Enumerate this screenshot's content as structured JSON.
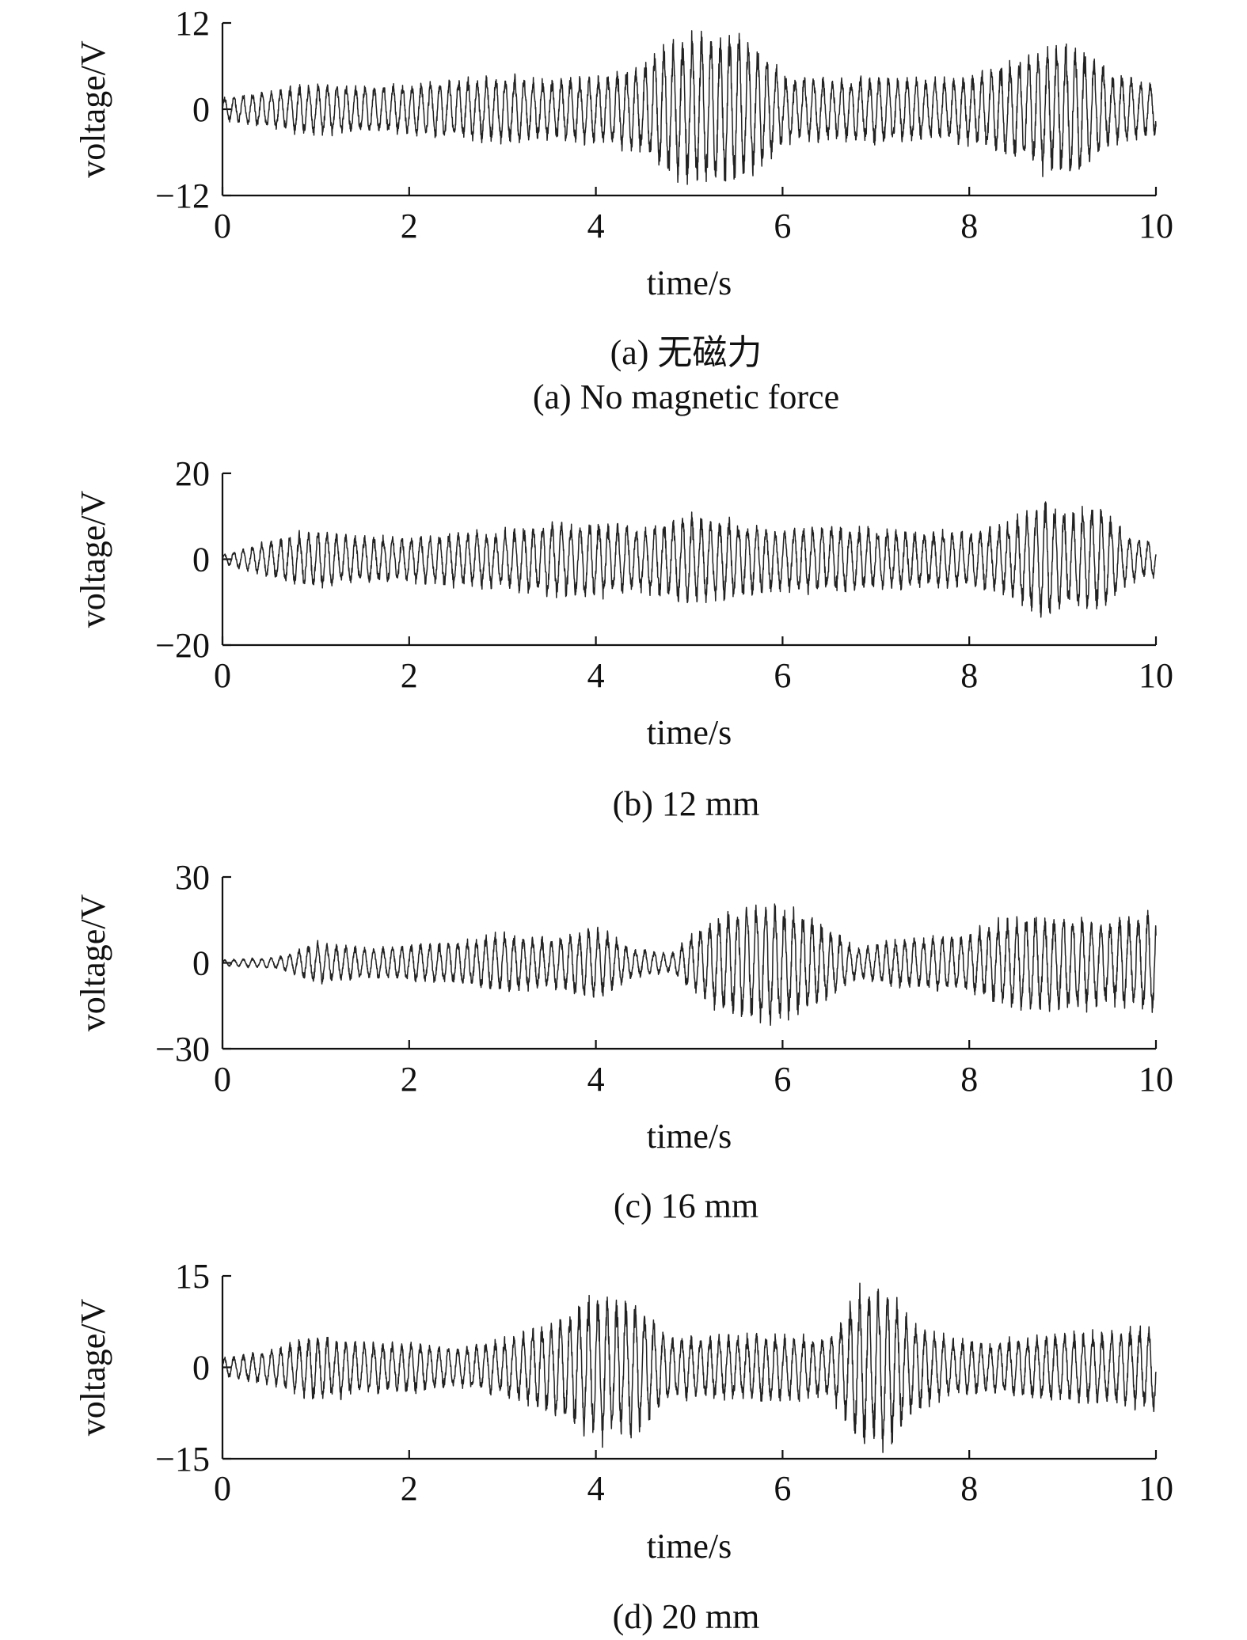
{
  "chart_data": [
    {
      "type": "line",
      "xlabel": "time/s",
      "ylabel": "voltage/V",
      "xlim": [
        0,
        10
      ],
      "ylim": [
        -12,
        12
      ],
      "xticks": [
        "0",
        "2",
        "4",
        "6",
        "8",
        "10"
      ],
      "yticks": [
        "12",
        "0",
        "−12"
      ],
      "caption": "(a) 无磁力",
      "caption_en": "(a) No magnetic force",
      "grid": false,
      "series": [
        {
          "x": [
            0,
            0.5,
            1,
            1.5,
            2,
            2.5,
            3,
            3.5,
            4,
            4.5,
            4.8,
            5,
            5.5,
            5.8,
            6,
            6.5,
            7,
            7.5,
            8,
            8.5,
            8.8,
            9.2,
            9.5,
            10
          ],
          "y_envelope": [
            1.5,
            2.5,
            3.5,
            3.0,
            3.5,
            4.0,
            4.5,
            4.0,
            4.5,
            6.0,
            9.5,
            10.0,
            10.0,
            8.0,
            4.5,
            4.0,
            4.5,
            4.0,
            4.5,
            6.5,
            8.5,
            8.5,
            5.0,
            3.5
          ],
          "frequency_hz": 10
        }
      ]
    },
    {
      "type": "line",
      "xlabel": "time/s",
      "ylabel": "voltage/V",
      "xlim": [
        0,
        10
      ],
      "ylim": [
        -20,
        20
      ],
      "xticks": [
        "0",
        "2",
        "4",
        "6",
        "8",
        "10"
      ],
      "yticks": [
        "20",
        "0",
        "−20"
      ],
      "caption": "(b) 12 mm",
      "grid": false,
      "series": [
        {
          "x": [
            0,
            0.5,
            1,
            1.5,
            2,
            2.5,
            3,
            3.5,
            4,
            4.5,
            5,
            5.5,
            6,
            6.5,
            7,
            7.5,
            8,
            8.5,
            8.8,
            9,
            9.4,
            9.7,
            10
          ],
          "y_envelope": [
            1.0,
            4.0,
            7.0,
            5.0,
            5.0,
            6.0,
            6.5,
            8.0,
            8.5,
            7.0,
            10.0,
            8.5,
            7.0,
            7.5,
            7.0,
            6.5,
            6.0,
            9.0,
            14.0,
            11.0,
            12.0,
            5.0,
            4.0
          ],
          "frequency_hz": 10
        }
      ]
    },
    {
      "type": "line",
      "xlabel": "time/s",
      "ylabel": "voltage/V",
      "xlim": [
        0,
        10
      ],
      "ylim": [
        -30,
        30
      ],
      "xticks": [
        "0",
        "2",
        "4",
        "6",
        "8",
        "10"
      ],
      "yticks": [
        "30",
        "0",
        "−30"
      ],
      "caption": "(c) 16 mm",
      "grid": false,
      "series": [
        {
          "x": [
            0,
            0.6,
            1,
            1.5,
            2,
            2.5,
            3,
            3.5,
            4,
            4.4,
            4.8,
            5.1,
            5.5,
            5.9,
            6.3,
            6.8,
            7.2,
            7.6,
            8,
            8.5,
            9,
            9.5,
            10
          ],
          "y_envelope": [
            1.0,
            2.0,
            7.0,
            5.0,
            6.0,
            7.0,
            10.0,
            8.0,
            12.5,
            5.0,
            3.0,
            12.0,
            18.0,
            21.0,
            16.0,
            5.0,
            8.0,
            9.0,
            10.0,
            16.0,
            16.0,
            14.0,
            17.0
          ],
          "frequency_hz": 10
        }
      ]
    },
    {
      "type": "line",
      "xlabel": "time/s",
      "ylabel": "voltage/V",
      "xlim": [
        0,
        10
      ],
      "ylim": [
        -15,
        15
      ],
      "xticks": [
        "0",
        "2",
        "4",
        "6",
        "8",
        "10"
      ],
      "yticks": [
        "15",
        "0",
        "−15"
      ],
      "caption": "(d) 20 mm",
      "grid": false,
      "series": [
        {
          "x": [
            0,
            0.6,
            1,
            1.5,
            2,
            2.5,
            3,
            3.5,
            4,
            4.4,
            4.8,
            5.2,
            5.6,
            6,
            6.5,
            6.8,
            7.1,
            7.4,
            7.8,
            8.2,
            8.6,
            9,
            9.5,
            10
          ],
          "y_envelope": [
            1.5,
            3.0,
            5.5,
            4.0,
            4.0,
            3.0,
            4.5,
            7.0,
            11.5,
            10.5,
            5.0,
            5.0,
            5.0,
            5.5,
            4.5,
            12.0,
            13.0,
            7.0,
            4.5,
            4.0,
            5.0,
            5.5,
            5.5,
            7.0
          ],
          "frequency_hz": 10
        }
      ]
    }
  ]
}
